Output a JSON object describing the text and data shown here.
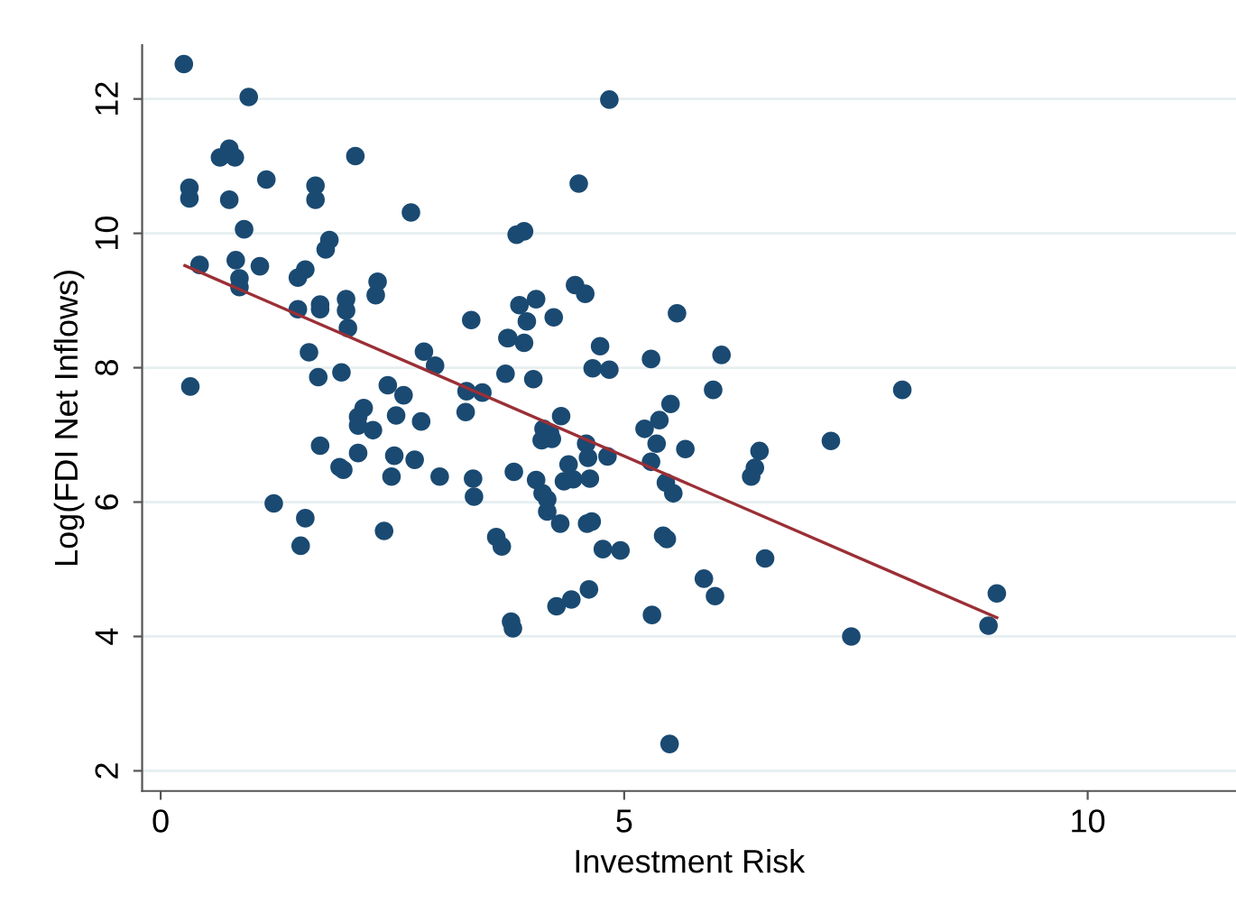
{
  "chart_data": {
    "type": "scatter",
    "xlabel": "Investment Risk",
    "ylabel": "Log(FDI Net Inflows)",
    "xlim": [
      -0.2,
      11.6
    ],
    "ylim": [
      1.7,
      12.8
    ],
    "xticks": [
      0,
      5,
      10
    ],
    "yticks": [
      2,
      4,
      6,
      8,
      10,
      12
    ],
    "grid": "y",
    "series": [
      {
        "marker": "circle",
        "color": "#1a4a72",
        "x": [
          0.25,
          0.95,
          0.64,
          0.74,
          0.8,
          2.1,
          0.31,
          0.31,
          0.74,
          1.14,
          1.67,
          1.67,
          2.7,
          0.9,
          0.42,
          0.81,
          1.07,
          0.85,
          0.85,
          1.82,
          1.78,
          1.56,
          1.48,
          2.34,
          2.32,
          1.48,
          1.72,
          1.72,
          2.0,
          2.0,
          2.02,
          3.35,
          3.74,
          1.6,
          2.84,
          2.96,
          1.7,
          1.95,
          0.32,
          2.45,
          2.62,
          3.3,
          3.47,
          3.72,
          4.84,
          4.51,
          3.84,
          3.92,
          4.47,
          4.58,
          3.87,
          4.05,
          3.95,
          4.24,
          3.75,
          3.92,
          5.57,
          4.74,
          4.02,
          4.66,
          4.84,
          5.29,
          6.05,
          5.96,
          5.5,
          5.38,
          5.22,
          8.0,
          4.32,
          4.13,
          2.19,
          2.13,
          2.13,
          2.29,
          2.54,
          2.81,
          3.29,
          1.72,
          2.13,
          1.93,
          1.97,
          2.52,
          2.74,
          2.49,
          3.01,
          3.37,
          3.38,
          3.81,
          1.22,
          1.56,
          1.51,
          2.41,
          3.62,
          3.68,
          3.78,
          3.8,
          4.2,
          4.11,
          4.22,
          4.59,
          4.61,
          4.82,
          4.4,
          4.35,
          4.45,
          4.63,
          4.05,
          4.12,
          4.17,
          4.17,
          4.31,
          4.6,
          4.65,
          4.77,
          4.96,
          5.35,
          5.29,
          5.66,
          5.45,
          5.53,
          5.42,
          5.46,
          6.46,
          6.41,
          6.37,
          7.23,
          6.52,
          5.86,
          5.98,
          4.62,
          4.43,
          4.27,
          5.3,
          7.45,
          5.49,
          9.02,
          8.93
        ],
        "values": [
          12.52,
          12.03,
          11.13,
          11.26,
          11.13,
          11.15,
          10.68,
          10.52,
          10.5,
          10.8,
          10.71,
          10.5,
          10.31,
          10.06,
          9.53,
          9.6,
          9.51,
          9.33,
          9.2,
          9.9,
          9.76,
          9.46,
          9.34,
          9.28,
          9.08,
          8.87,
          8.94,
          8.87,
          9.02,
          8.85,
          8.59,
          8.71,
          8.44,
          8.23,
          8.24,
          8.03,
          7.86,
          7.93,
          7.72,
          7.74,
          7.59,
          7.65,
          7.63,
          7.91,
          11.99,
          10.74,
          9.98,
          10.03,
          9.23,
          9.1,
          8.93,
          9.02,
          8.69,
          8.75,
          8.44,
          8.37,
          8.81,
          8.32,
          7.83,
          7.99,
          7.97,
          8.13,
          8.19,
          7.67,
          7.46,
          7.22,
          7.09,
          7.67,
          7.28,
          7.09,
          7.4,
          7.27,
          7.14,
          7.07,
          7.29,
          7.2,
          7.34,
          6.84,
          6.73,
          6.52,
          6.48,
          6.69,
          6.63,
          6.38,
          6.38,
          6.35,
          6.08,
          6.45,
          5.98,
          5.76,
          5.35,
          5.57,
          5.48,
          5.34,
          4.22,
          4.12,
          7.03,
          6.92,
          6.94,
          6.87,
          6.66,
          6.68,
          6.56,
          6.31,
          6.34,
          6.35,
          6.33,
          6.13,
          6.04,
          5.86,
          5.68,
          5.68,
          5.71,
          5.3,
          5.28,
          6.87,
          6.6,
          6.79,
          6.29,
          6.13,
          5.5,
          5.45,
          6.76,
          6.51,
          6.38,
          6.91,
          5.16,
          4.86,
          4.6,
          4.7,
          4.55,
          4.45,
          4.32,
          4.0,
          2.4,
          4.64,
          4.16
        ]
      },
      {
        "type": "line",
        "marker": "none",
        "color": "#9b2f36",
        "x": [
          0.26,
          9.02
        ],
        "values": [
          9.52,
          4.28
        ]
      }
    ]
  }
}
